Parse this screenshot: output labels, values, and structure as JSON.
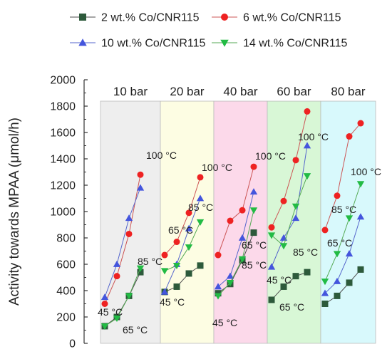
{
  "chart_data": {
    "type": "line",
    "ylabel": "Activity towards MPAA (μmol/h)",
    "ylim": [
      0,
      2000
    ],
    "yticks": [
      0,
      200,
      400,
      600,
      800,
      1000,
      1200,
      1400,
      1600,
      1800,
      2000
    ],
    "grid": false,
    "legend_position": "top",
    "regions": [
      {
        "label": "10 bar",
        "color": "#eeeeee"
      },
      {
        "label": "20 bar",
        "color": "#fdfde3"
      },
      {
        "label": "40 bar",
        "color": "#fcd9ea"
      },
      {
        "label": "60 bar",
        "color": "#d8f7d6"
      },
      {
        "label": "80 bar",
        "color": "#d8f9fc"
      }
    ],
    "temperatures_c": [
      45,
      65,
      85,
      100
    ],
    "series": [
      {
        "name": "2 wt.% Co/CNR115",
        "color": "#4d4d4d",
        "marker_color": "#2d5a3b",
        "marker": "square",
        "values": [
          [
            130,
            200,
            360,
            540
          ],
          [
            390,
            430,
            530,
            590
          ],
          [
            380,
            450,
            630,
            840
          ],
          [
            330,
            430,
            510,
            540
          ],
          [
            300,
            360,
            460,
            560
          ]
        ]
      },
      {
        "name": "6 wt.% Co/CNR115",
        "color": "#cc5555",
        "marker_color": "#ee2222",
        "marker": "circle",
        "values": [
          [
            300,
            510,
            830,
            1280
          ],
          [
            670,
            770,
            990,
            1260
          ],
          [
            670,
            930,
            1010,
            1340
          ],
          [
            880,
            1080,
            1390,
            1760
          ],
          [
            860,
            1120,
            1570,
            1670
          ]
        ]
      },
      {
        "name": "10 wt.% Co/CNR115",
        "color": "#5566cc",
        "marker_color": "#4455dd",
        "marker": "triangle-up",
        "values": [
          [
            350,
            600,
            950,
            1180
          ],
          [
            390,
            600,
            870,
            1100
          ],
          [
            430,
            510,
            800,
            1150
          ],
          [
            580,
            800,
            950,
            1500
          ],
          [
            380,
            470,
            680,
            960
          ]
        ]
      },
      {
        "name": "14 wt.% Co/CNR115",
        "color": "#55aa55",
        "marker_color": "#22bb44",
        "marker": "triangle-down",
        "values": [
          [
            130,
            190,
            360,
            570
          ],
          [
            550,
            590,
            730,
            920
          ],
          [
            360,
            460,
            640,
            1010
          ],
          [
            820,
            740,
            1040,
            1270
          ],
          [
            470,
            680,
            950,
            1210
          ]
        ]
      }
    ],
    "annotations": [
      "45 °C",
      "65 °C",
      "85 °C",
      "100 °C"
    ]
  }
}
